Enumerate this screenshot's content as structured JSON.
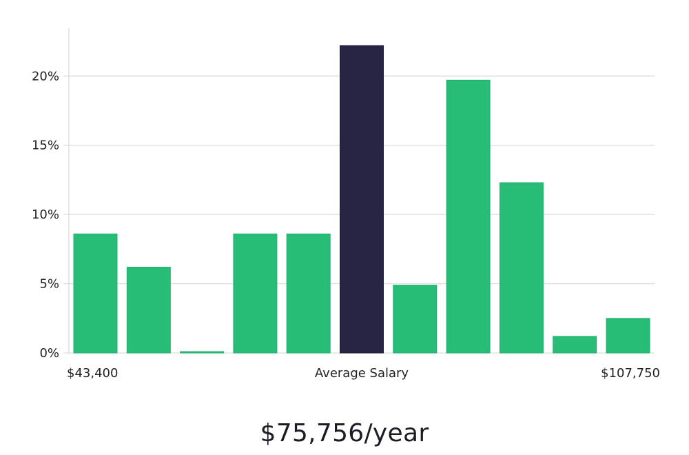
{
  "chart_data": {
    "type": "bar",
    "title": "",
    "ylabel": "",
    "ylim": [
      0,
      23.5
    ],
    "yticks": [
      0,
      5,
      10,
      15,
      20
    ],
    "ytick_labels": [
      "0%",
      "5%",
      "10%",
      "15%",
      "20%"
    ],
    "x_labels": {
      "min": "$43,400",
      "center": "Average Salary",
      "max": "$107,750"
    },
    "values": [
      8.6,
      6.2,
      0.1,
      8.6,
      8.6,
      22.2,
      4.9,
      19.7,
      12.3,
      1.2,
      2.5
    ],
    "highlight_index": 5,
    "colors": {
      "bar": "#27bd77",
      "highlight": "#282544",
      "grid": "#dcdcdc",
      "axis": "#cfcfcf"
    }
  },
  "summary": {
    "average_salary": "$75,756/year"
  }
}
